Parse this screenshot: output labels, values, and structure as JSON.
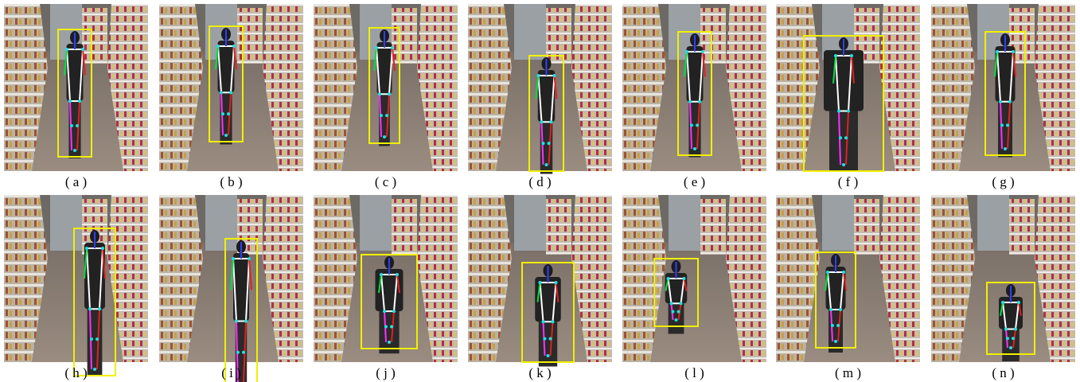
{
  "panels": [
    {
      "label": "( a )"
    },
    {
      "label": "( b )"
    },
    {
      "label": "( c )"
    },
    {
      "label": "( d )"
    },
    {
      "label": "( e )"
    },
    {
      "label": "( f )"
    },
    {
      "label": "( g )"
    },
    {
      "label": "( h )"
    },
    {
      "label": "( i )"
    },
    {
      "label": "( j )"
    },
    {
      "label": "( k )"
    },
    {
      "label": "( l )"
    },
    {
      "label": "( m )"
    },
    {
      "label": "( n )"
    }
  ]
}
